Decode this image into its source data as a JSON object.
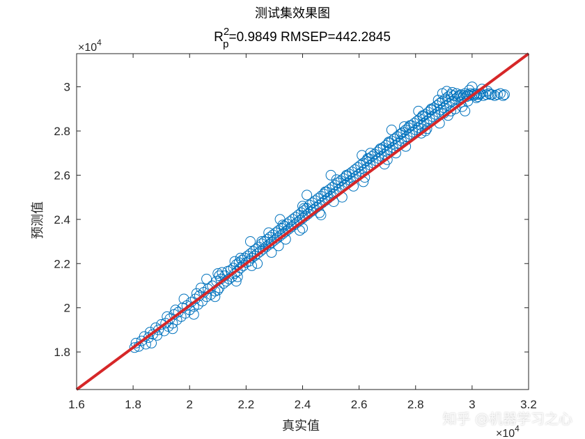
{
  "chart_data": {
    "type": "scatter",
    "title": "测试集效果图",
    "subtitle_parts": {
      "r": "R",
      "sup": "2",
      "sub": "p",
      "rest": "=0.9849  RMSEP=442.2845"
    },
    "xlabel": "真实值",
    "ylabel": "预测值",
    "x_exponent": "×10",
    "x_exponent_power": "4",
    "y_exponent": "×10",
    "y_exponent_power": "4",
    "xlim": [
      16000,
      32000
    ],
    "ylim": [
      16300,
      31500
    ],
    "x_ticks": [
      16000,
      18000,
      20000,
      22000,
      24000,
      26000,
      28000,
      30000,
      32000
    ],
    "x_tick_labels": [
      "1.6",
      "1.8",
      "2",
      "2.2",
      "2.4",
      "2.6",
      "2.8",
      "3",
      "3.2"
    ],
    "y_ticks": [
      18000,
      20000,
      22000,
      24000,
      26000,
      28000,
      30000
    ],
    "y_tick_labels": [
      "1.8",
      "2",
      "2.2",
      "2.4",
      "2.6",
      "2.8",
      "3"
    ],
    "grid": false,
    "scatter_color": "#0072BD",
    "fit_line": {
      "color": "#D62728",
      "from": [
        16000,
        16300
      ],
      "to": [
        32000,
        31500
      ]
    },
    "points": [
      [
        18050,
        18200
      ],
      [
        18100,
        18400
      ],
      [
        18200,
        18250
      ],
      [
        18300,
        18500
      ],
      [
        18400,
        18700
      ],
      [
        18450,
        18350
      ],
      [
        18550,
        18650
      ],
      [
        18600,
        18900
      ],
      [
        18700,
        18800
      ],
      [
        18800,
        19100
      ],
      [
        18850,
        18750
      ],
      [
        18900,
        19000
      ],
      [
        19000,
        19250
      ],
      [
        19100,
        18950
      ],
      [
        19150,
        19300
      ],
      [
        19250,
        19150
      ],
      [
        19300,
        19500
      ],
      [
        19400,
        19300
      ],
      [
        19450,
        19700
      ],
      [
        19550,
        19450
      ],
      [
        19600,
        19800
      ],
      [
        19700,
        19600
      ],
      [
        19750,
        20000
      ],
      [
        19850,
        19750
      ],
      [
        19900,
        20100
      ],
      [
        20000,
        19900
      ],
      [
        20050,
        20250
      ],
      [
        20150,
        20050
      ],
      [
        20200,
        20400
      ],
      [
        20300,
        20150
      ],
      [
        20350,
        20550
      ],
      [
        20450,
        20300
      ],
      [
        20500,
        20700
      ],
      [
        20600,
        20500
      ],
      [
        20650,
        20850
      ],
      [
        20750,
        20600
      ],
      [
        20800,
        21000
      ],
      [
        20900,
        20750
      ],
      [
        20950,
        21200
      ],
      [
        21000,
        21550
      ],
      [
        21050,
        20900
      ],
      [
        21100,
        21300
      ],
      [
        21150,
        21600
      ],
      [
        21200,
        21100
      ],
      [
        21250,
        21450
      ],
      [
        21300,
        21200
      ],
      [
        21350,
        21650
      ],
      [
        21400,
        21300
      ],
      [
        21450,
        21700
      ],
      [
        21500,
        21400
      ],
      [
        21550,
        21800
      ],
      [
        21600,
        21550
      ],
      [
        21650,
        21950
      ],
      [
        21700,
        21650
      ],
      [
        21750,
        22050
      ],
      [
        21800,
        21800
      ],
      [
        21850,
        22150
      ],
      [
        21900,
        21900
      ],
      [
        21950,
        22250
      ],
      [
        22000,
        22050
      ],
      [
        22050,
        22350
      ],
      [
        22100,
        22100
      ],
      [
        22150,
        22450
      ],
      [
        22200,
        22250
      ],
      [
        22250,
        22550
      ],
      [
        22300,
        22350
      ],
      [
        22350,
        22650
      ],
      [
        22400,
        22450
      ],
      [
        22450,
        22750
      ],
      [
        22500,
        22550
      ],
      [
        22550,
        22900
      ],
      [
        22600,
        22650
      ],
      [
        22650,
        23000
      ],
      [
        22700,
        22750
      ],
      [
        22750,
        23100
      ],
      [
        22800,
        22850
      ],
      [
        22850,
        23200
      ],
      [
        22900,
        22950
      ],
      [
        22950,
        23300
      ],
      [
        23000,
        23050
      ],
      [
        23050,
        23400
      ],
      [
        23100,
        23150
      ],
      [
        23150,
        23500
      ],
      [
        23200,
        23250
      ],
      [
        23250,
        23600
      ],
      [
        23300,
        23350
      ],
      [
        23350,
        23700
      ],
      [
        23400,
        23450
      ],
      [
        23450,
        23800
      ],
      [
        23500,
        23550
      ],
      [
        23550,
        23900
      ],
      [
        23600,
        23650
      ],
      [
        23650,
        24000
      ],
      [
        23700,
        23750
      ],
      [
        23750,
        24100
      ],
      [
        23800,
        23850
      ],
      [
        23850,
        24200
      ],
      [
        23900,
        23950
      ],
      [
        23950,
        24300
      ],
      [
        24000,
        24050
      ],
      [
        24050,
        24400
      ],
      [
        24100,
        24150
      ],
      [
        24150,
        24500
      ],
      [
        24200,
        24250
      ],
      [
        24250,
        24650
      ],
      [
        24300,
        24350
      ],
      [
        24350,
        24750
      ],
      [
        24400,
        24450
      ],
      [
        24450,
        24850
      ],
      [
        24500,
        24550
      ],
      [
        24550,
        24950
      ],
      [
        24600,
        24650
      ],
      [
        24650,
        25050
      ],
      [
        24700,
        24750
      ],
      [
        24750,
        25150
      ],
      [
        24800,
        24850
      ],
      [
        24850,
        25250
      ],
      [
        24900,
        24950
      ],
      [
        24950,
        25350
      ],
      [
        25000,
        25050
      ],
      [
        25050,
        25450
      ],
      [
        25100,
        25150
      ],
      [
        25150,
        25550
      ],
      [
        25200,
        25250
      ],
      [
        25250,
        25650
      ],
      [
        25300,
        25350
      ],
      [
        25350,
        25750
      ],
      [
        25400,
        25450
      ],
      [
        25450,
        25850
      ],
      [
        25500,
        25550
      ],
      [
        25550,
        25950
      ],
      [
        25600,
        25650
      ],
      [
        25650,
        26050
      ],
      [
        25700,
        25750
      ],
      [
        25750,
        26150
      ],
      [
        25800,
        25850
      ],
      [
        25850,
        26250
      ],
      [
        25900,
        25950
      ],
      [
        25950,
        26350
      ],
      [
        26000,
        26050
      ],
      [
        26050,
        26450
      ],
      [
        26100,
        26150
      ],
      [
        26150,
        26550
      ],
      [
        26200,
        26250
      ],
      [
        26250,
        26650
      ],
      [
        26300,
        26350
      ],
      [
        26350,
        26750
      ],
      [
        26400,
        26450
      ],
      [
        26450,
        26850
      ],
      [
        26500,
        26550
      ],
      [
        26550,
        26950
      ],
      [
        26600,
        26650
      ],
      [
        26650,
        27050
      ],
      [
        26700,
        26750
      ],
      [
        26750,
        27150
      ],
      [
        26800,
        26850
      ],
      [
        26850,
        27250
      ],
      [
        26900,
        26950
      ],
      [
        26950,
        27350
      ],
      [
        27000,
        27050
      ],
      [
        27050,
        27450
      ],
      [
        27100,
        27150
      ],
      [
        27150,
        27550
      ],
      [
        27200,
        27250
      ],
      [
        27250,
        27650
      ],
      [
        27300,
        27350
      ],
      [
        27350,
        27750
      ],
      [
        27400,
        27450
      ],
      [
        27450,
        27850
      ],
      [
        27500,
        27550
      ],
      [
        27550,
        27950
      ],
      [
        27600,
        27650
      ],
      [
        27650,
        28050
      ],
      [
        27700,
        27750
      ],
      [
        27750,
        28150
      ],
      [
        27800,
        27850
      ],
      [
        27850,
        28250
      ],
      [
        27900,
        27950
      ],
      [
        27950,
        28350
      ],
      [
        28000,
        28050
      ],
      [
        28050,
        28450
      ],
      [
        28100,
        28150
      ],
      [
        28150,
        28550
      ],
      [
        28200,
        28250
      ],
      [
        28250,
        28650
      ],
      [
        28300,
        28350
      ],
      [
        28350,
        28750
      ],
      [
        28400,
        28450
      ],
      [
        28450,
        28850
      ],
      [
        28500,
        28550
      ],
      [
        28550,
        28950
      ],
      [
        28600,
        28650
      ],
      [
        28650,
        29050
      ],
      [
        28700,
        28750
      ],
      [
        28750,
        29150
      ],
      [
        28800,
        28850
      ],
      [
        28850,
        29250
      ],
      [
        28900,
        28950
      ],
      [
        28950,
        29350
      ],
      [
        29000,
        29050
      ],
      [
        29050,
        29450
      ],
      [
        29100,
        29150
      ],
      [
        29150,
        29550
      ],
      [
        29200,
        29250
      ],
      [
        29250,
        29650
      ],
      [
        29300,
        29350
      ],
      [
        29350,
        29600
      ],
      [
        29400,
        29450
      ],
      [
        29450,
        29700
      ],
      [
        29500,
        29550
      ],
      [
        29550,
        29600
      ],
      [
        29600,
        29650
      ],
      [
        29650,
        29500
      ],
      [
        29700,
        29600
      ],
      [
        29750,
        29700
      ],
      [
        29800,
        29550
      ],
      [
        29850,
        29650
      ],
      [
        29900,
        29600
      ],
      [
        29950,
        29700
      ],
      [
        30000,
        29650
      ],
      [
        30050,
        29600
      ],
      [
        30100,
        29700
      ],
      [
        30150,
        29650
      ],
      [
        30200,
        29550
      ],
      [
        30250,
        29650
      ],
      [
        30300,
        29700
      ],
      [
        30400,
        29600
      ],
      [
        30500,
        29650
      ],
      [
        30600,
        29700
      ],
      [
        30700,
        29650
      ],
      [
        30800,
        29600
      ],
      [
        30900,
        29650
      ],
      [
        31000,
        29700
      ],
      [
        31100,
        29600
      ],
      [
        31150,
        29650
      ],
      [
        19200,
        19600
      ],
      [
        19800,
        20400
      ],
      [
        20400,
        20900
      ],
      [
        21000,
        20800
      ],
      [
        21600,
        22100
      ],
      [
        22200,
        21900
      ],
      [
        22800,
        23400
      ],
      [
        23400,
        23100
      ],
      [
        24000,
        24600
      ],
      [
        24600,
        24300
      ],
      [
        25200,
        25800
      ],
      [
        25800,
        25500
      ],
      [
        26400,
        27000
      ],
      [
        27000,
        26700
      ],
      [
        27600,
        28200
      ],
      [
        28200,
        27900
      ],
      [
        28800,
        29400
      ],
      [
        29400,
        29000
      ],
      [
        30000,
        30000
      ],
      [
        29600,
        29300
      ],
      [
        22150,
        23000
      ],
      [
        23200,
        24000
      ],
      [
        24150,
        25100
      ],
      [
        25000,
        26000
      ],
      [
        26100,
        26900
      ],
      [
        27150,
        28050
      ],
      [
        28100,
        28900
      ],
      [
        29100,
        29800
      ],
      [
        30350,
        29900
      ],
      [
        29000,
        28800
      ],
      [
        20600,
        21300
      ],
      [
        21700,
        21400
      ],
      [
        22900,
        22500
      ],
      [
        24000,
        23600
      ],
      [
        25100,
        24800
      ],
      [
        26200,
        25900
      ],
      [
        27300,
        27000
      ],
      [
        28350,
        28000
      ],
      [
        29250,
        28900
      ],
      [
        29750,
        28900
      ],
      [
        18650,
        18400
      ],
      [
        19400,
        19050
      ],
      [
        20150,
        19700
      ],
      [
        20900,
        20500
      ],
      [
        21650,
        21200
      ],
      [
        22400,
        22000
      ],
      [
        23150,
        22800
      ],
      [
        23900,
        23500
      ],
      [
        24650,
        24200
      ],
      [
        25400,
        25000
      ],
      [
        26150,
        25700
      ],
      [
        26900,
        26500
      ],
      [
        27650,
        27300
      ],
      [
        28400,
        28100
      ],
      [
        29150,
        28700
      ],
      [
        29850,
        29350
      ],
      [
        30550,
        29800
      ],
      [
        30150,
        29500
      ],
      [
        29650,
        29100
      ],
      [
        28850,
        28350
      ],
      [
        19500,
        19900
      ],
      [
        20250,
        20650
      ],
      [
        21050,
        21450
      ],
      [
        21800,
        22250
      ],
      [
        22550,
        23000
      ],
      [
        23300,
        23750
      ],
      [
        24050,
        24500
      ],
      [
        24800,
        25250
      ],
      [
        25550,
        26000
      ],
      [
        26300,
        26750
      ],
      [
        27050,
        27500
      ],
      [
        27800,
        28250
      ],
      [
        28550,
        29000
      ],
      [
        29300,
        29750
      ],
      [
        29900,
        29850
      ],
      [
        30650,
        29650
      ],
      [
        28950,
        29700
      ],
      [
        28250,
        28700
      ],
      [
        27500,
        27900
      ],
      [
        26750,
        27200
      ]
    ]
  },
  "watermark": "知乎 @机器学习之心"
}
